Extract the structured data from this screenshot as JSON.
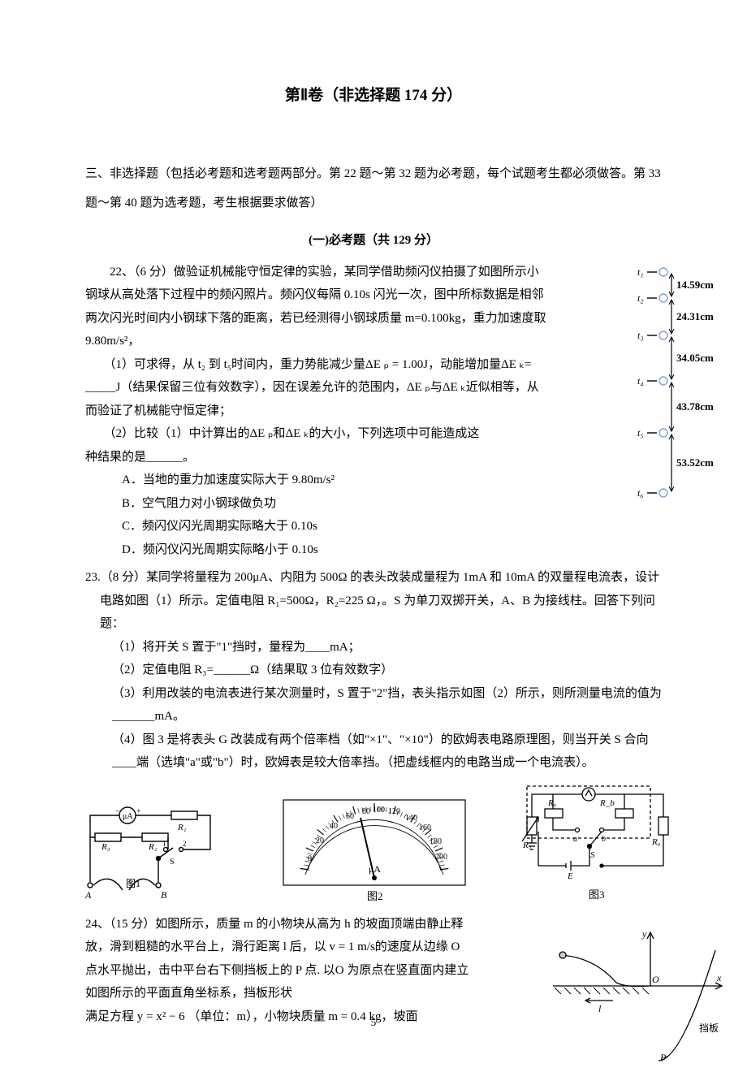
{
  "sectionTitle": "第Ⅱ卷（非选择题 174 分）",
  "intro": "三、非选择题（包括必考题和选考题两部分。第 22 题～第 32 题为必考题，每个试题考生都必须做答。第 33 题～第 40 题为选考题，考生根据要求做答）",
  "subsectionTitle": "(一)必考题（共 129 分）",
  "q22": {
    "head": "　　22、（6 分）做验证机械能守恒定律的实验，某同学借助频闪仪拍摄了如图所示小钢球从高处落下过程中的频闪照片。频闪仪每隔 0.10s 闪光一次，图中所标数据是相邻两次闪光时间内小钢球下落的距离，若已经测得小钢球质量 m=0.100kg，重力加速度取 9.80m/s²，",
    "p1": "　　（1）可求得，从 t₂ 到 t₅时间内，重力势能减少量ΔE ₚ = 1.00J，动能增加量ΔE ₖ= _____J（结果保留三位有效数字），因在误差允许的范围内，ΔE ₚ与ΔE ₖ近似相等，从而验证了机械能守恒定律；",
    "p2a": "　　（2）比较（1）中计算出的ΔE ₚ和ΔE ₖ的大小，下列选项中可能造成这",
    "p2b": "种结果的是______。",
    "optA": "A．当地的重力加速度实际大于 9.80m/s²",
    "optB": "B．空气阻力对小钢球做负功",
    "optC": "C．频闪仪闪光周期实际略大于 0.10s",
    "optD": "D．频闪仪闪光周期实际略小于 0.10s",
    "figure": {
      "distances": [
        "14.59cm",
        "24.31cm",
        "34.05cm",
        "43.78cm",
        "53.52cm"
      ],
      "tlabels": [
        "t₁",
        "t₂",
        "t₃",
        "t₄",
        "t₅",
        "t₆"
      ]
    }
  },
  "q23": {
    "head": "23.（8 分）某同学将量程为 200μA、内阻为 500Ω 的表头改装成量程为 1mA 和 10mA 的双量程电流表，设计电路如图（1）所示。定值电阻 R₁=500Ω，R₂=225 Ω，。S 为单刀双掷开关，A、B 为接线柱。回答下列问题：",
    "p1": "（1）将开关 S 置于\"1\"挡时，量程为____mA；",
    "p2": "（2）定值电阻 R₃=______Ω（结果取 3 位有效数字）",
    "p3": "（3）利用改装的电流表进行某次测量时，S 置于\"2\"挡，表头指示如图（2）所示，则所测量电流的值为_______mA。",
    "p4": "（4）图 3 是将表头 G 改装成有两个倍率档（如\"×1\"、\"×10\"）的欧姆表电路原理图，则当开关 S 合向____端（选填\"a\"或\"b\"）时，欧姆表是较大倍率挡。（把虚线框内的电路当成一个电流表）。",
    "fig1Label": "图1",
    "fig2Label": "图2",
    "fig3Label": "图3",
    "meterUnit": "μA"
  },
  "q24": {
    "head": "24、（15 分）如图所示，质量 m 的小物块从高为 h 的坡面顶端由静止释放，滑到粗糙的水平台上，滑行距离 l 后，以 v = 1 m/s的速度从边缘 O 点水平抛出，击中平台右下侧挡板上的 P 点. 以O 为原点在竖直面内建立如图所示的平面直角坐标系，挡板形状",
    "formula": "满足方程  y = x² − 6 （单位：m），小物块质量 m = 0.4 kg，坡面",
    "figLabels": {
      "y": "y",
      "x": "x",
      "O": "O",
      "l": "l",
      "dangban": "挡板",
      "P": "P"
    }
  },
  "pageNum": "5",
  "colors": {
    "line": "#000000",
    "circle": "#84a5c9"
  }
}
